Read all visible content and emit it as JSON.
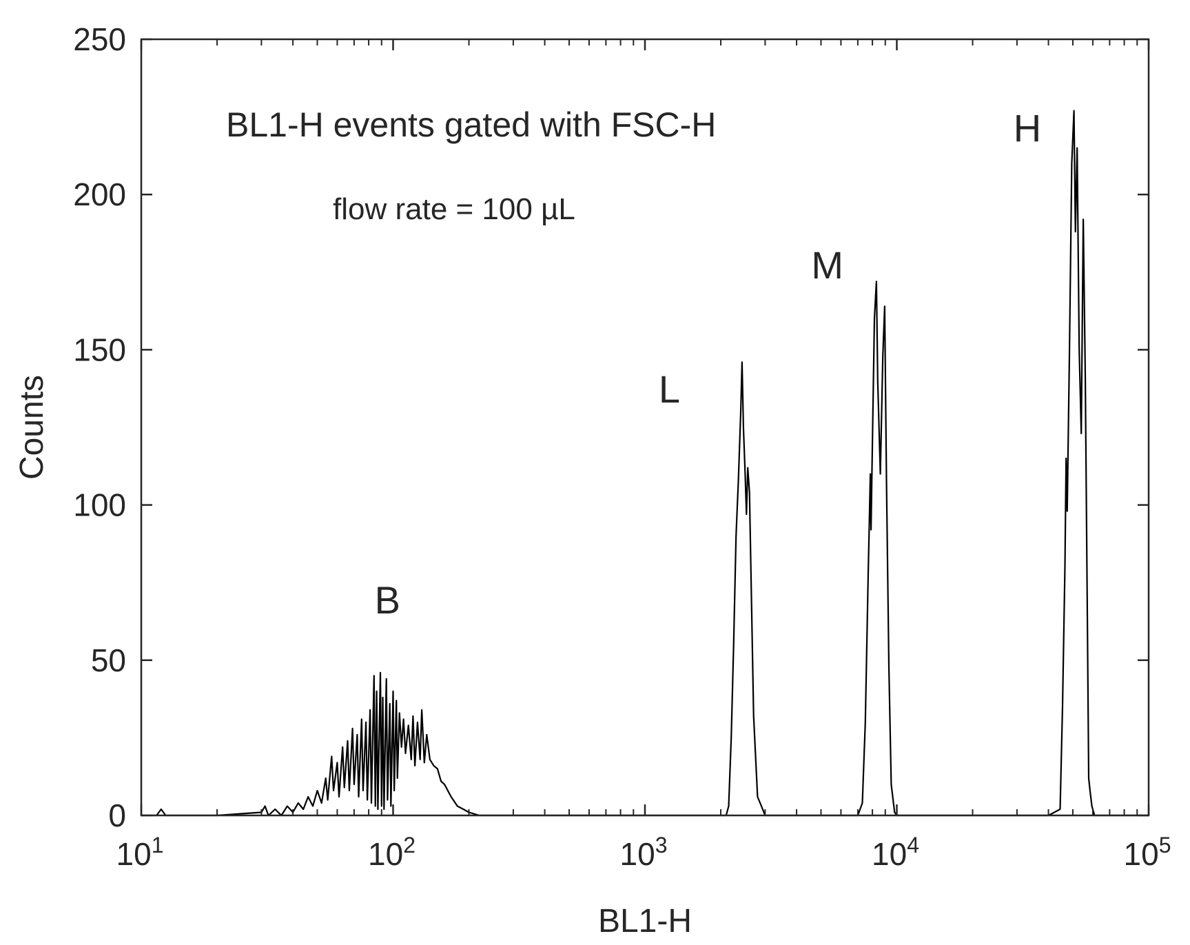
{
  "chart_data": {
    "type": "line",
    "title": "",
    "xlabel": "BL1-H",
    "ylabel": "Counts",
    "xscale": "log",
    "xlim": [
      10,
      100000
    ],
    "ylim": [
      0,
      250
    ],
    "grid": false,
    "x_ticks": [
      {
        "value": 10,
        "base": "10",
        "exp": "1"
      },
      {
        "value": 100,
        "base": "10",
        "exp": "2"
      },
      {
        "value": 1000,
        "base": "10",
        "exp": "3"
      },
      {
        "value": 10000,
        "base": "10",
        "exp": "4"
      },
      {
        "value": 100000,
        "base": "10",
        "exp": "5"
      }
    ],
    "y_ticks": [
      0,
      50,
      100,
      150,
      200,
      250
    ],
    "annotations": {
      "title_text": "BL1-H events gated with FSC-H",
      "flow_rate_text": "flow rate = 100 µL"
    },
    "peak_labels": [
      {
        "text": "B",
        "x": 95,
        "y": 65
      },
      {
        "text": "L",
        "x": 1250,
        "y": 133
      },
      {
        "text": "M",
        "x": 5300,
        "y": 173
      },
      {
        "text": "H",
        "x": 33000,
        "y": 217
      }
    ],
    "series": [
      {
        "color": "#000000",
        "points": [
          [
            10,
            0
          ],
          [
            11.5,
            0
          ],
          [
            12,
            2
          ],
          [
            12.5,
            0
          ],
          [
            20,
            0
          ],
          [
            30,
            1
          ],
          [
            31,
            3
          ],
          [
            32,
            0
          ],
          [
            34,
            2
          ],
          [
            36,
            0
          ],
          [
            38,
            3
          ],
          [
            40,
            1
          ],
          [
            42,
            4
          ],
          [
            44,
            2
          ],
          [
            46,
            6
          ],
          [
            48,
            3
          ],
          [
            50,
            8
          ],
          [
            52,
            4
          ],
          [
            54,
            12
          ],
          [
            55,
            5
          ],
          [
            57,
            19
          ],
          [
            58,
            8
          ],
          [
            60,
            17
          ],
          [
            61,
            6
          ],
          [
            63,
            22
          ],
          [
            64,
            9
          ],
          [
            66,
            24
          ],
          [
            67,
            8
          ],
          [
            69,
            28
          ],
          [
            70,
            10
          ],
          [
            72,
            26
          ],
          [
            73,
            6
          ],
          [
            75,
            31
          ],
          [
            76,
            8
          ],
          [
            78,
            30
          ],
          [
            79,
            5
          ],
          [
            81,
            34
          ],
          [
            82,
            4
          ],
          [
            84,
            45
          ],
          [
            85,
            3
          ],
          [
            86,
            40
          ],
          [
            87,
            2
          ],
          [
            89,
            46
          ],
          [
            90,
            3
          ],
          [
            91,
            38
          ],
          [
            92,
            2
          ],
          [
            94,
            44
          ],
          [
            95,
            5
          ],
          [
            97,
            36
          ],
          [
            98,
            3
          ],
          [
            100,
            40
          ],
          [
            101,
            8
          ],
          [
            103,
            37
          ],
          [
            104,
            12
          ],
          [
            106,
            33
          ],
          [
            108,
            22
          ],
          [
            110,
            31
          ],
          [
            112,
            20
          ],
          [
            115,
            29
          ],
          [
            118,
            18
          ],
          [
            120,
            32
          ],
          [
            122,
            16
          ],
          [
            125,
            30
          ],
          [
            128,
            18
          ],
          [
            130,
            34
          ],
          [
            133,
            17
          ],
          [
            136,
            26
          ],
          [
            140,
            18
          ],
          [
            145,
            16
          ],
          [
            150,
            15
          ],
          [
            155,
            11
          ],
          [
            160,
            10
          ],
          [
            170,
            6
          ],
          [
            180,
            3
          ],
          [
            190,
            2
          ],
          [
            200,
            1
          ],
          [
            220,
            0
          ],
          [
            300,
            0
          ],
          [
            1000,
            0
          ],
          [
            2100,
            0
          ],
          [
            2150,
            3
          ],
          [
            2200,
            25
          ],
          [
            2250,
            55
          ],
          [
            2300,
            90
          ],
          [
            2350,
            108
          ],
          [
            2400,
            130
          ],
          [
            2430,
            146
          ],
          [
            2460,
            125
          ],
          [
            2500,
            110
          ],
          [
            2530,
            97
          ],
          [
            2560,
            112
          ],
          [
            2600,
            104
          ],
          [
            2650,
            68
          ],
          [
            2700,
            32
          ],
          [
            2800,
            6
          ],
          [
            2900,
            3
          ],
          [
            3000,
            0
          ],
          [
            7000,
            0
          ],
          [
            7300,
            4
          ],
          [
            7500,
            30
          ],
          [
            7700,
            78
          ],
          [
            7850,
            110
          ],
          [
            7900,
            92
          ],
          [
            8000,
            120
          ],
          [
            8150,
            160
          ],
          [
            8300,
            172
          ],
          [
            8400,
            140
          ],
          [
            8600,
            110
          ],
          [
            8800,
            148
          ],
          [
            8950,
            164
          ],
          [
            9100,
            108
          ],
          [
            9300,
            48
          ],
          [
            9500,
            10
          ],
          [
            9800,
            1
          ],
          [
            10000,
            0
          ],
          [
            40000,
            0
          ],
          [
            44500,
            2
          ],
          [
            45500,
            35
          ],
          [
            46500,
            80
          ],
          [
            47000,
            115
          ],
          [
            47500,
            98
          ],
          [
            48500,
            150
          ],
          [
            49500,
            210
          ],
          [
            50500,
            227
          ],
          [
            51200,
            188
          ],
          [
            52000,
            215
          ],
          [
            53000,
            150
          ],
          [
            54000,
            123
          ],
          [
            55000,
            192
          ],
          [
            56000,
            142
          ],
          [
            57000,
            70
          ],
          [
            57800,
            12
          ],
          [
            58500,
            8
          ],
          [
            59500,
            3
          ],
          [
            61000,
            0
          ],
          [
            100000,
            0
          ]
        ]
      }
    ]
  }
}
